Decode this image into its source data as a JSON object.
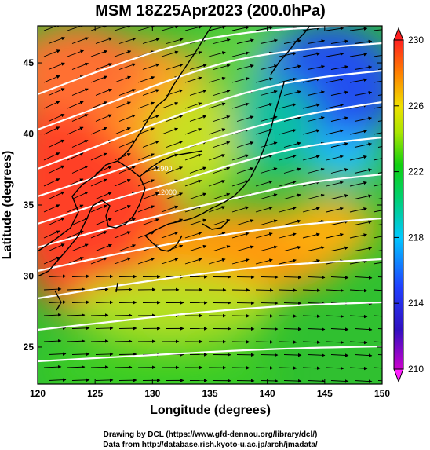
{
  "title": "MSM 18Z25Apr2023 (200.0hPa)",
  "credits": [
    "Drawing by DCL (https://www.gfd-dennou.org/library/dcl/)",
    "Data from http://database.rish.kyoto-u.ac.jp/arch/jmadata/"
  ],
  "chart_data": {
    "type": "heatmap",
    "title": "MSM 18Z25Apr2023 (200.0hPa)",
    "xlabel": "Longitude (degrees)",
    "ylabel": "Latitude  (degrees)",
    "xlim": [
      120,
      150
    ],
    "ylim": [
      22.4,
      47.6
    ],
    "xticks": [
      120,
      125,
      130,
      135,
      140,
      145,
      150
    ],
    "yticks": [
      25,
      30,
      35,
      40,
      45
    ],
    "colorbar": {
      "min": 210,
      "max": 230,
      "ticks": [
        210,
        214,
        218,
        222,
        226,
        230
      ],
      "colors": [
        "#cc00cc",
        "#2020c8",
        "#00c8ff",
        "#00c800",
        "#e6e600",
        "#ff3030"
      ]
    },
    "contour_labels": [
      "11900",
      "12000"
    ],
    "overlays": [
      "wind-vectors",
      "geopotential-height-contours",
      "coastlines"
    ]
  }
}
